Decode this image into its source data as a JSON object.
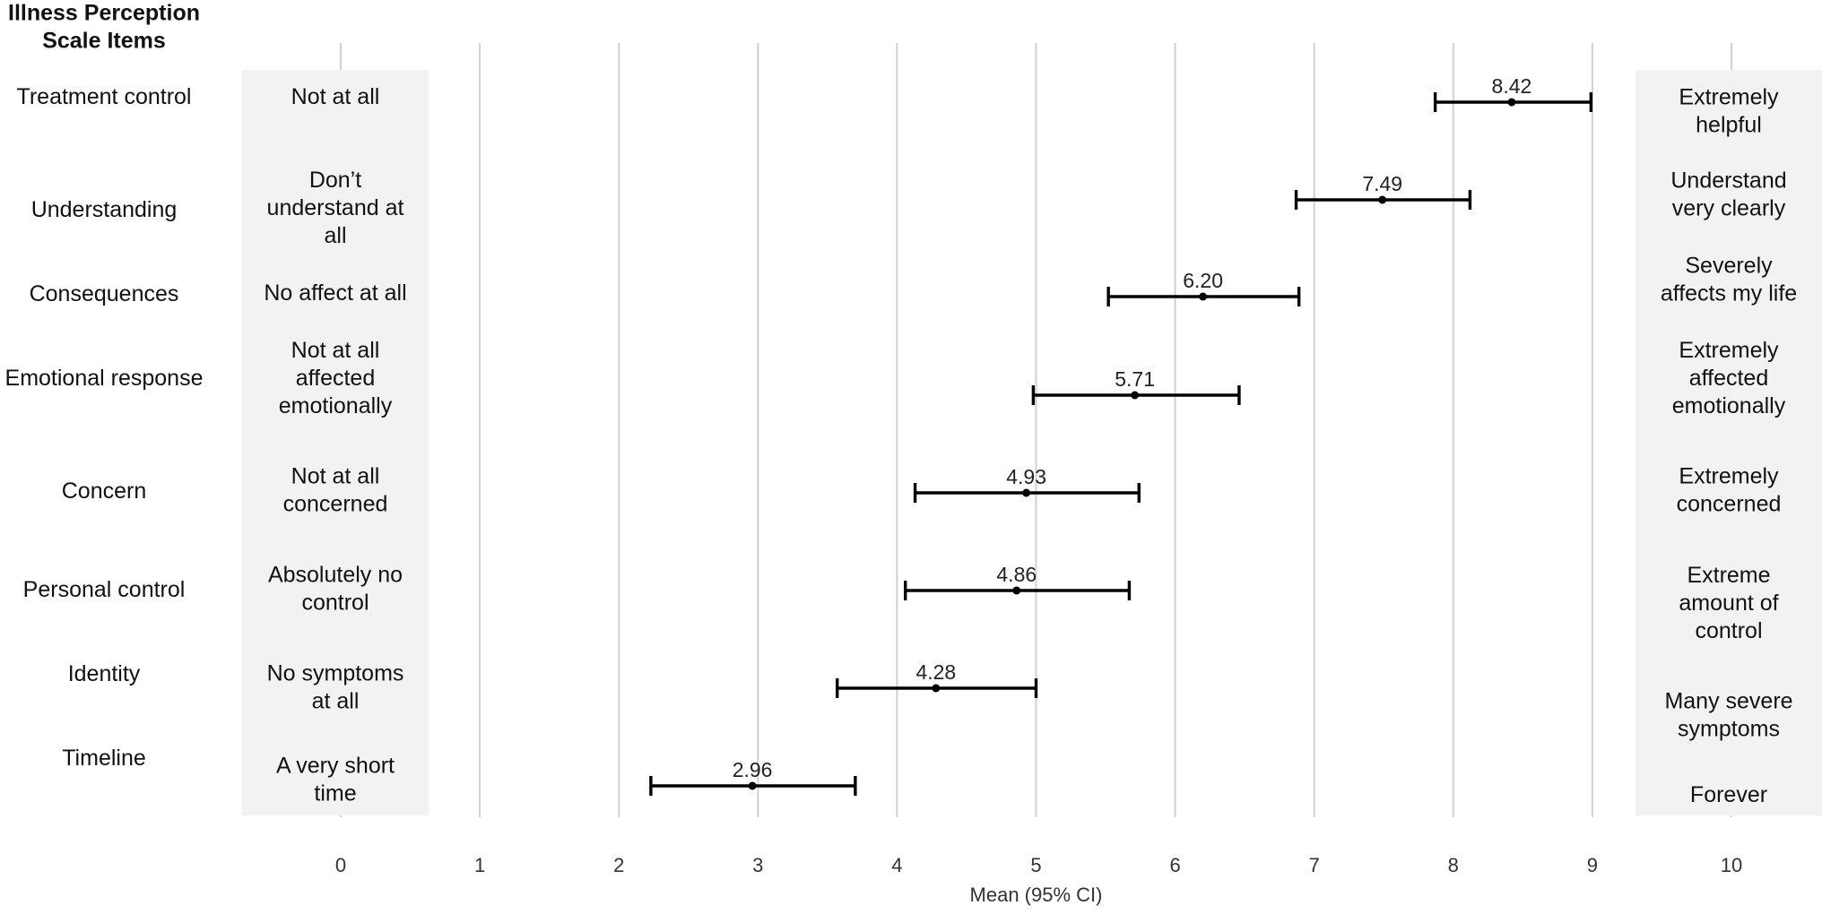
{
  "chart_data": {
    "type": "forest",
    "title": "",
    "header": [
      "Illness Perception",
      "Scale Items"
    ],
    "xlabel": "Mean (95% CI)",
    "xlim": [
      0,
      10
    ],
    "xticks": [
      "0",
      "1",
      "2",
      "3",
      "4",
      "5",
      "6",
      "7",
      "8",
      "9",
      "10"
    ],
    "grid": true,
    "rows": [
      {
        "item": "Treatment control",
        "low_anchor": [
          "Not at all"
        ],
        "high_anchor": [
          "Extremely",
          "helpful"
        ],
        "mean": 8.42,
        "ci_low": 7.87,
        "ci_high": 8.99,
        "label": "8.42"
      },
      {
        "item": "Understanding",
        "low_anchor": [
          "Don’t",
          "understand at",
          "all"
        ],
        "high_anchor": [
          "Understand",
          "very clearly"
        ],
        "mean": 7.49,
        "ci_low": 6.87,
        "ci_high": 8.12,
        "label": "7.49"
      },
      {
        "item": "Consequences",
        "low_anchor": [
          "No affect at all"
        ],
        "high_anchor": [
          "Severely",
          "affects my life"
        ],
        "mean": 6.2,
        "ci_low": 5.52,
        "ci_high": 6.89,
        "label": "6.20"
      },
      {
        "item": "Emotional response",
        "low_anchor": [
          "Not at all",
          "affected",
          "emotionally"
        ],
        "high_anchor": [
          "Extremely",
          "affected",
          "emotionally"
        ],
        "mean": 5.71,
        "ci_low": 4.98,
        "ci_high": 6.46,
        "label": "5.71"
      },
      {
        "item": "Concern",
        "low_anchor": [
          "Not at all",
          "concerned"
        ],
        "high_anchor": [
          "Extremely",
          "concerned"
        ],
        "mean": 4.93,
        "ci_low": 4.13,
        "ci_high": 5.74,
        "label": "4.93"
      },
      {
        "item": "Personal control",
        "low_anchor": [
          "Absolutely no",
          "control"
        ],
        "high_anchor": [
          "Extreme",
          "amount of",
          "control"
        ],
        "mean": 4.86,
        "ci_low": 4.06,
        "ci_high": 5.67,
        "label": "4.86"
      },
      {
        "item": "Identity",
        "low_anchor": [
          "No symptoms",
          "at all"
        ],
        "high_anchor": [
          "Many severe",
          "symptoms"
        ],
        "mean": 4.28,
        "ci_low": 3.57,
        "ci_high": 5.0,
        "label": "4.28"
      },
      {
        "item": "Timeline",
        "low_anchor": [
          "A very short",
          "time"
        ],
        "high_anchor": [
          "Forever"
        ],
        "mean": 2.96,
        "ci_low": 2.23,
        "ci_high": 3.7,
        "label": "2.96"
      }
    ]
  }
}
